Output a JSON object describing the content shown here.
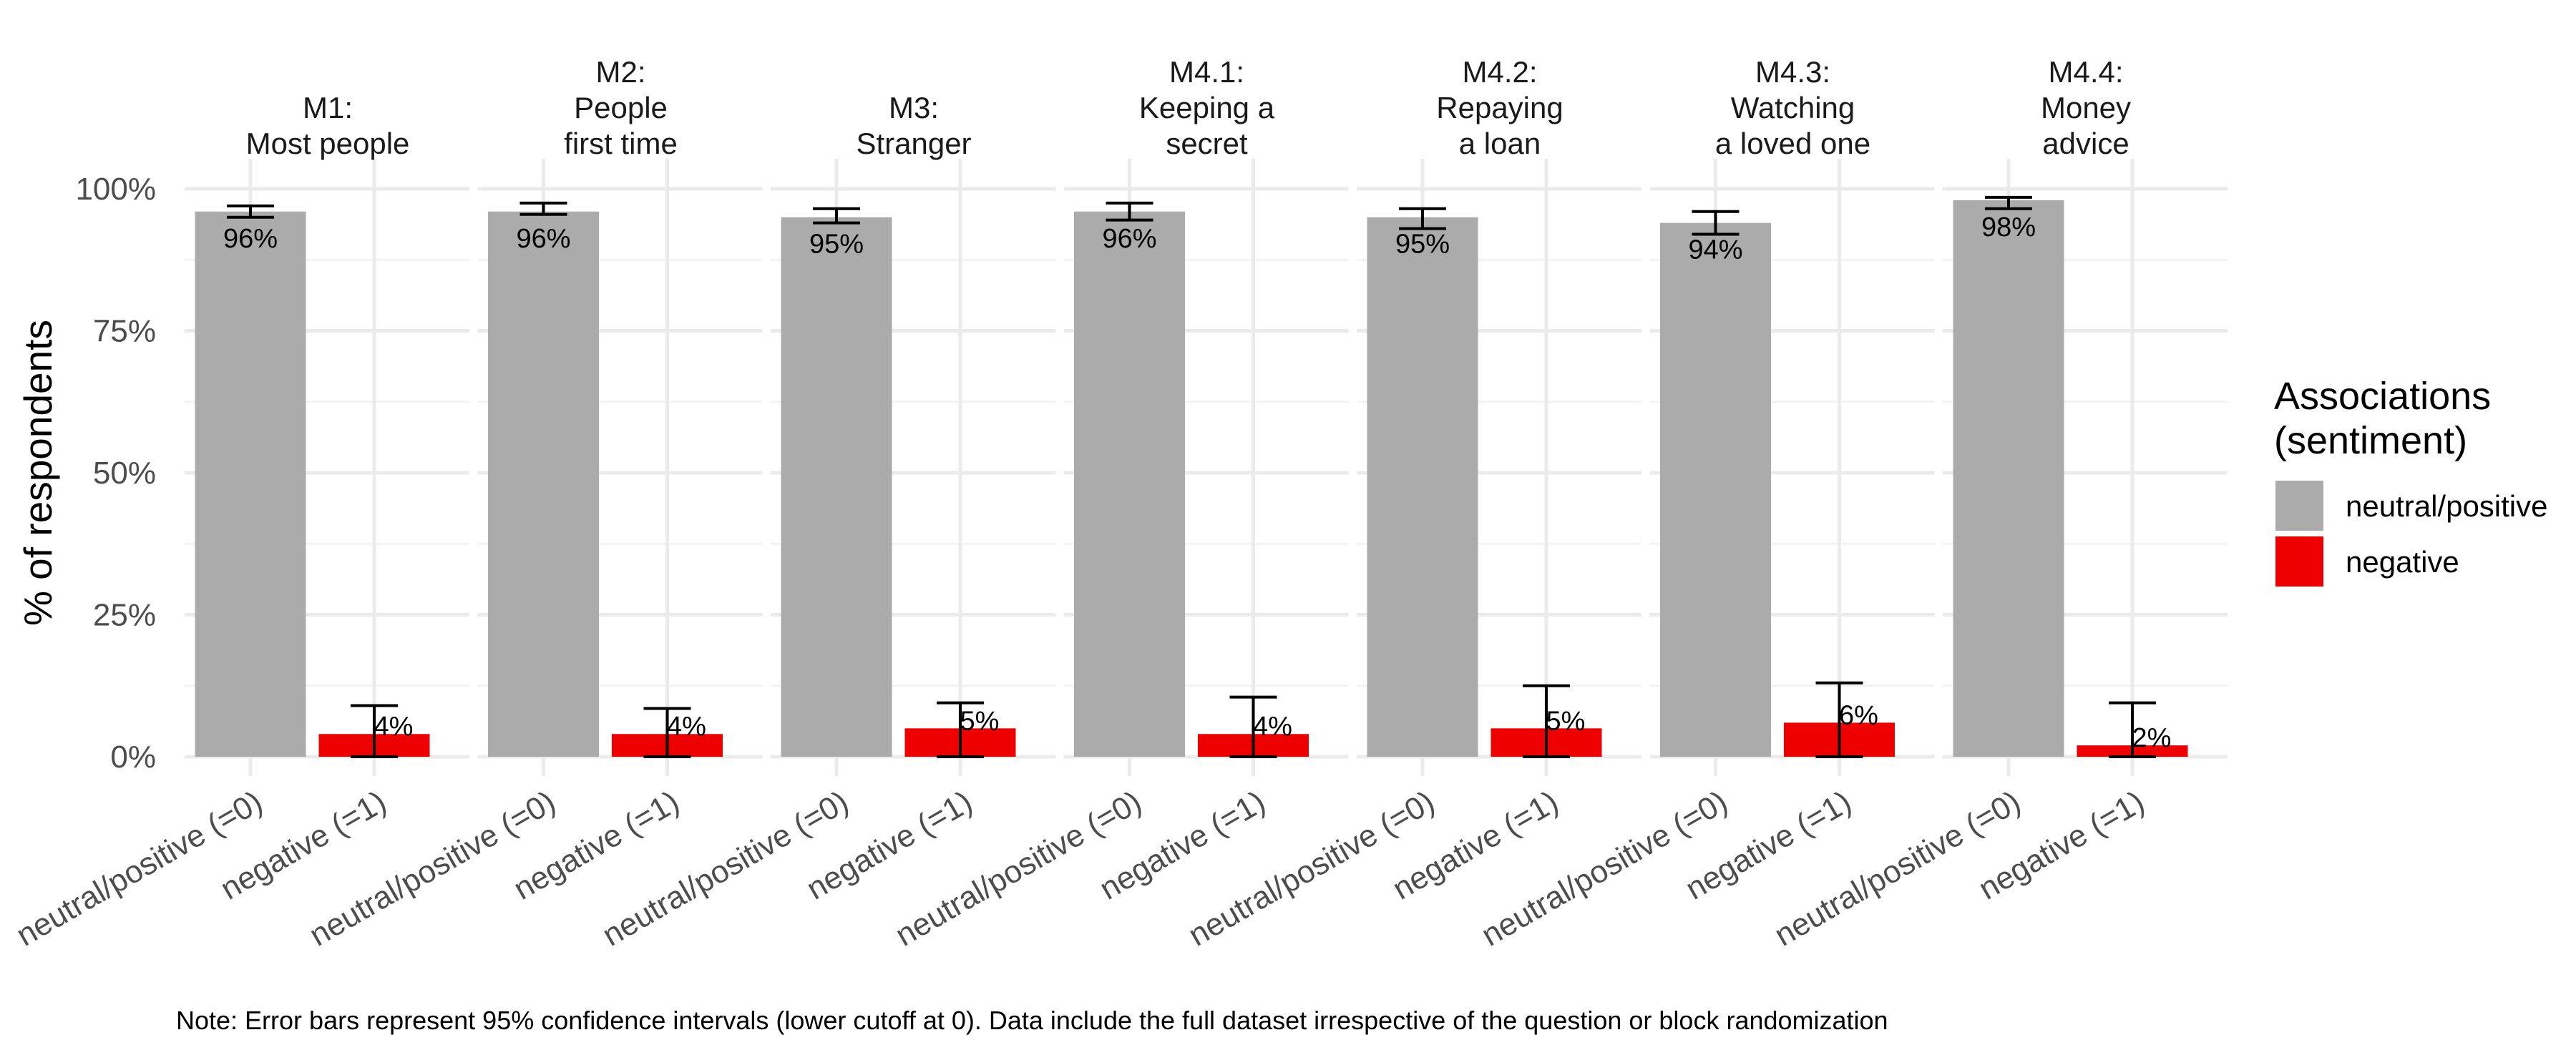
{
  "chart_data": {
    "type": "bar",
    "facets": [
      {
        "label_lines": [
          "M1:",
          "Most people"
        ],
        "values": [
          96,
          4
        ],
        "value_labels": [
          "96%",
          "4%"
        ],
        "ci": [
          [
            95,
            97
          ],
          [
            0,
            9
          ]
        ]
      },
      {
        "label_lines": [
          "M2:",
          "People",
          "first time"
        ],
        "values": [
          96,
          4
        ],
        "value_labels": [
          "96%",
          "4%"
        ],
        "ci": [
          [
            95.5,
            97.5
          ],
          [
            0,
            8.5
          ]
        ]
      },
      {
        "label_lines": [
          "M3:",
          "Stranger"
        ],
        "values": [
          95,
          5
        ],
        "value_labels": [
          "95%",
          "5%"
        ],
        "ci": [
          [
            94,
            96.5
          ],
          [
            0,
            9.5
          ]
        ]
      },
      {
        "label_lines": [
          "M4.1:",
          "Keeping a",
          "secret"
        ],
        "values": [
          96,
          4
        ],
        "value_labels": [
          "96%",
          "4%"
        ],
        "ci": [
          [
            94.5,
            97.5
          ],
          [
            0,
            10.5
          ]
        ]
      },
      {
        "label_lines": [
          "M4.2:",
          "Repaying",
          "a loan"
        ],
        "values": [
          95,
          5
        ],
        "value_labels": [
          "95%",
          "5%"
        ],
        "ci": [
          [
            93,
            96.5
          ],
          [
            0,
            12.5
          ]
        ]
      },
      {
        "label_lines": [
          "M4.3:",
          "Watching",
          "a loved one"
        ],
        "values": [
          94,
          6
        ],
        "value_labels": [
          "94%",
          "6%"
        ],
        "ci": [
          [
            92,
            96
          ],
          [
            0,
            13
          ]
        ]
      },
      {
        "label_lines": [
          "M4.4:",
          "Money",
          "advice"
        ],
        "values": [
          98,
          2
        ],
        "value_labels": [
          "98%",
          "2%"
        ],
        "ci": [
          [
            96.5,
            98.5
          ],
          [
            0,
            9.5
          ]
        ]
      }
    ],
    "categories": [
      "neutral/positive (=0)",
      "negative (=1)"
    ],
    "series_colors": [
      "#ababab",
      "#ee0000"
    ],
    "ylabel": "% of respondents",
    "xlabel": "",
    "ylim": [
      0,
      100
    ],
    "y_ticks": [
      0,
      25,
      50,
      75,
      100
    ],
    "y_tick_labels": [
      "0%",
      "25%",
      "50%",
      "75%",
      "100%"
    ],
    "legend": {
      "title_lines": [
        "Associations",
        "(sentiment)"
      ],
      "items": [
        {
          "label": "neutral/positive",
          "color": "#ababab"
        },
        {
          "label": "negative",
          "color": "#ee0000"
        }
      ],
      "position": "right"
    },
    "grid": true
  },
  "note": "Note: Error bars represent 95% confidence intervals (lower cutoff at 0). Data include the full dataset irrespective of the question or block randomization"
}
